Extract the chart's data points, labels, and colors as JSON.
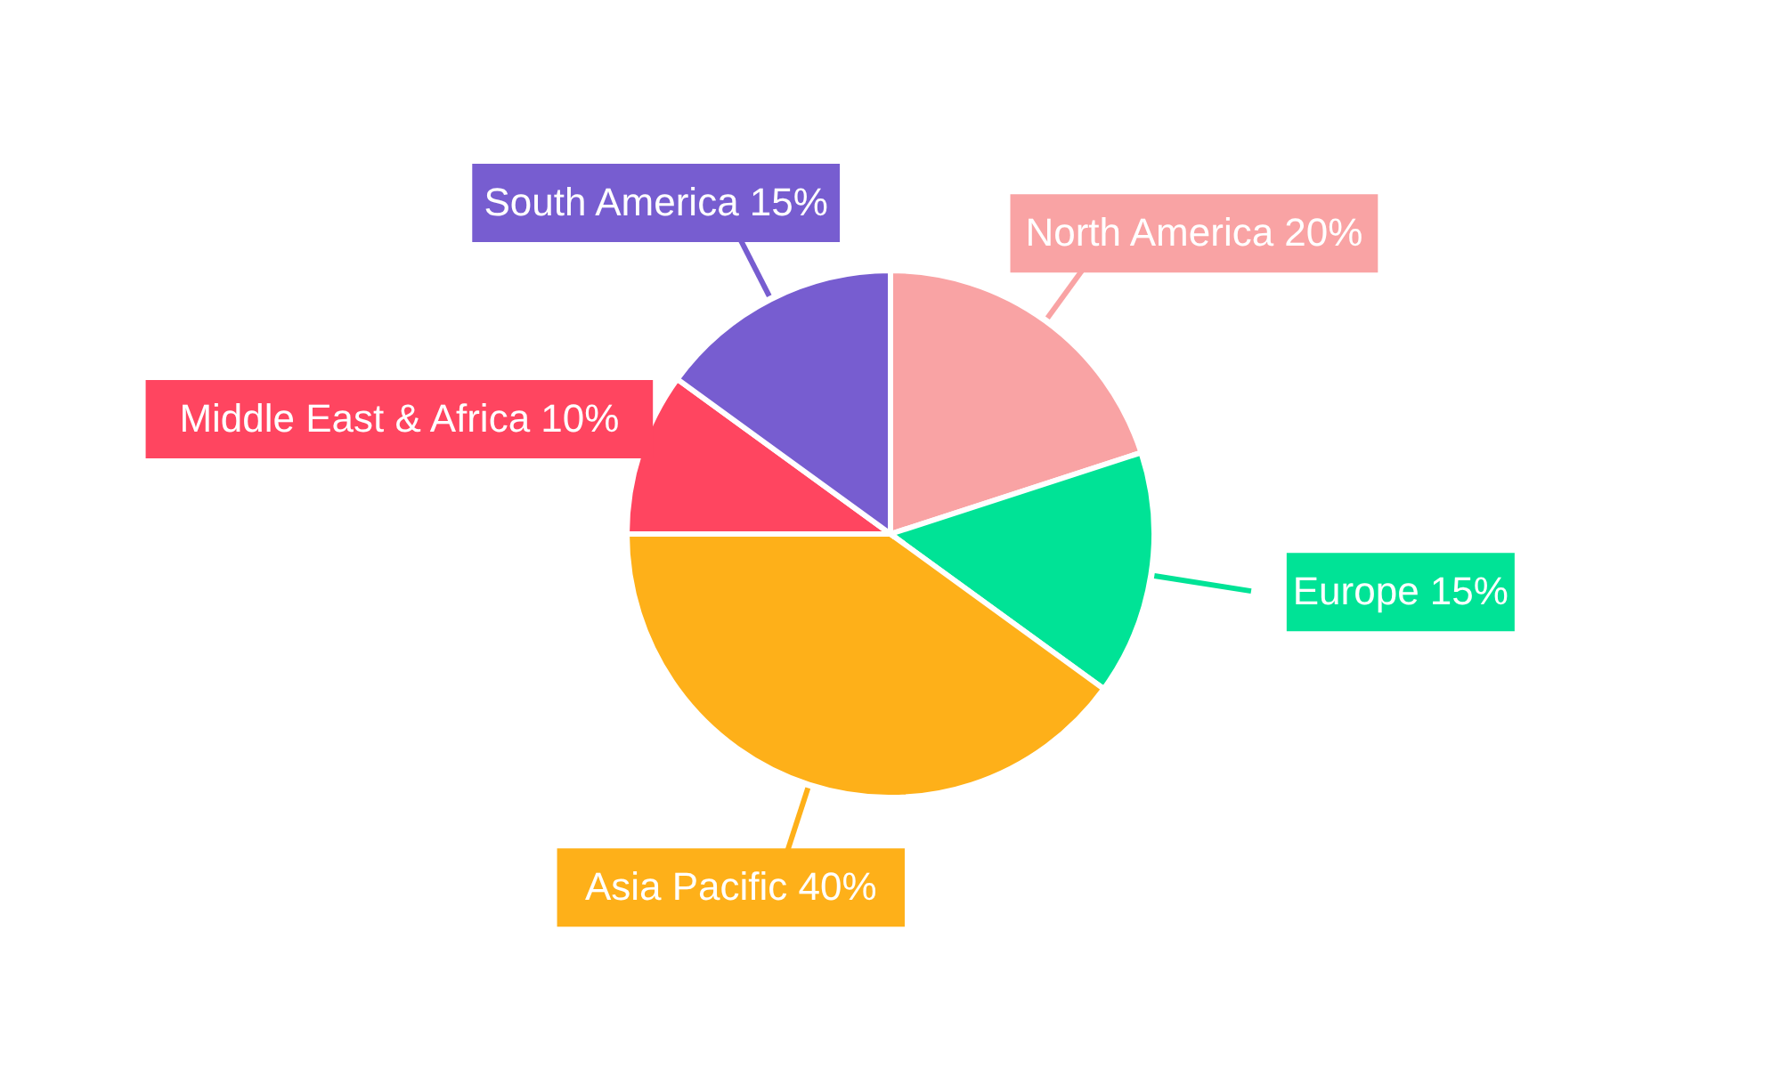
{
  "chart_data": {
    "type": "pie",
    "categories": [
      "North America",
      "Europe",
      "Asia Pacific",
      "Middle East & Africa",
      "South America"
    ],
    "values": [
      20,
      15,
      40,
      10,
      15
    ],
    "value_labels": [
      "20%",
      "15%",
      "40%",
      "10%",
      "15%"
    ],
    "colors": [
      "#f9a3a4",
      "#00e396",
      "#feb019",
      "#ff4560",
      "#775dd0"
    ],
    "legend": false
  }
}
